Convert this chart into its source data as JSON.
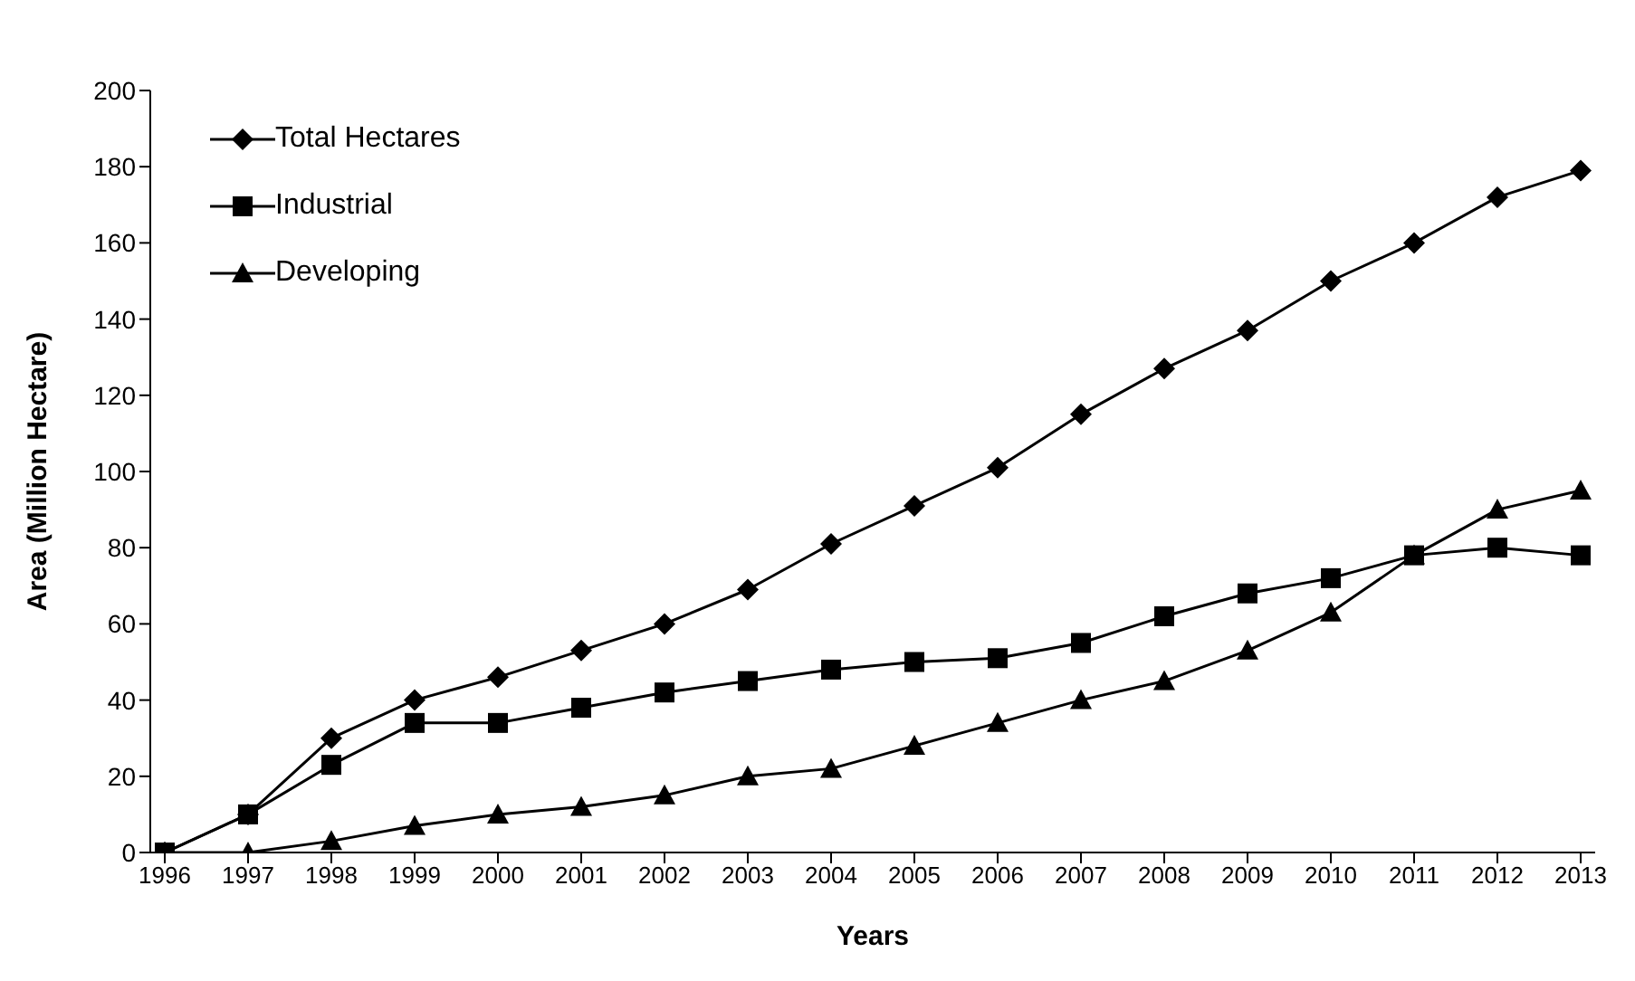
{
  "chart_data": {
    "type": "line",
    "xlabel": "Years",
    "ylabel": "Area (Million Hectare)",
    "categories": [
      "1996",
      "1997",
      "1998",
      "1999",
      "2000",
      "2001",
      "2002",
      "2003",
      "2004",
      "2005",
      "2006",
      "2007",
      "2008",
      "2009",
      "2010",
      "2011",
      "2012",
      "2013"
    ],
    "series": [
      {
        "name": "Total Hectares",
        "color": "#000000",
        "marker": "diamond",
        "values": [
          0,
          10,
          30,
          40,
          46,
          53,
          60,
          69,
          81,
          91,
          101,
          115,
          127,
          137,
          150,
          160,
          172,
          179
        ]
      },
      {
        "name": "Industrial",
        "color": "#000000",
        "marker": "square",
        "values": [
          0,
          10,
          23,
          34,
          34,
          38,
          42,
          45,
          48,
          50,
          51,
          55,
          62,
          68,
          72,
          78,
          80,
          78
        ]
      },
      {
        "name": "Developing",
        "color": "#000000",
        "marker": "triangle",
        "values": [
          0,
          0,
          3,
          7,
          10,
          12,
          15,
          20,
          22,
          28,
          34,
          40,
          45,
          53,
          63,
          78,
          90,
          95
        ]
      }
    ],
    "ylim": [
      0,
      200
    ],
    "yticks": [
      0,
      20,
      40,
      60,
      80,
      100,
      120,
      140,
      160,
      180,
      200
    ],
    "grid": false,
    "legend": "top left",
    "line_style": "solid"
  }
}
